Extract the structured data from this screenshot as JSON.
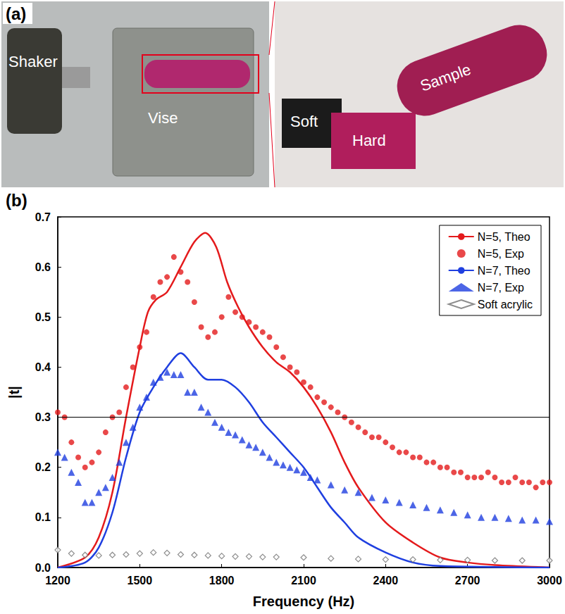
{
  "photo": {
    "letter": "(a)",
    "left_labels": [
      "Shaker",
      "Vise"
    ],
    "right_labels": [
      "Soft",
      "Hard",
      "Sample"
    ]
  },
  "chart_data": {
    "type": "line",
    "panel_letter": "(b)",
    "x_label": "Frequency (Hz)",
    "y_label": "|t|",
    "xlim": [
      1200,
      3000
    ],
    "xticks": [
      1200,
      1500,
      1800,
      2100,
      2400,
      2700,
      3000
    ],
    "ylim": [
      0,
      0.7
    ],
    "yticks": [
      {
        "value": 0,
        "label": "0.0"
      },
      0.1,
      0.2,
      0.3,
      0.4,
      0.5,
      0.6,
      0.7
    ],
    "reference_line": 0.3,
    "grid": false,
    "legend": "top-right",
    "series": [
      {
        "name": "N=5, Theo",
        "type": "line",
        "color": "#e41a1c",
        "line_style": "solid",
        "x": [
          1200,
          1300,
          1350,
          1400,
          1450,
          1500,
          1530,
          1560,
          1600,
          1650,
          1700,
          1740,
          1780,
          1820,
          1860,
          1900,
          1950,
          2000,
          2050,
          2100,
          2150,
          2200,
          2250,
          2300,
          2400,
          2500,
          2600,
          2700,
          2800,
          3000
        ],
        "values": [
          0.0,
          0.02,
          0.06,
          0.15,
          0.3,
          0.44,
          0.51,
          0.535,
          0.55,
          0.6,
          0.65,
          0.668,
          0.64,
          0.57,
          0.52,
          0.48,
          0.44,
          0.41,
          0.39,
          0.36,
          0.32,
          0.27,
          0.21,
          0.16,
          0.09,
          0.05,
          0.02,
          0.01,
          0.005,
          0.0
        ]
      },
      {
        "name": "N=5, Exp",
        "type": "scatter",
        "color": "#e41a1c",
        "marker": "circle",
        "x": [
          1200,
          1225,
          1250,
          1275,
          1300,
          1325,
          1350,
          1375,
          1400,
          1425,
          1450,
          1475,
          1500,
          1525,
          1550,
          1575,
          1600,
          1625,
          1650,
          1675,
          1700,
          1725,
          1750,
          1775,
          1800,
          1825,
          1850,
          1875,
          1900,
          1925,
          1950,
          1975,
          2000,
          2025,
          2050,
          2075,
          2100,
          2125,
          2150,
          2175,
          2200,
          2225,
          2250,
          2275,
          2300,
          2325,
          2350,
          2375,
          2400,
          2425,
          2450,
          2475,
          2500,
          2525,
          2550,
          2575,
          2600,
          2625,
          2650,
          2675,
          2700,
          2725,
          2750,
          2775,
          2800,
          2825,
          2850,
          2875,
          2900,
          2925,
          2950,
          2975,
          3000
        ],
        "values": [
          0.31,
          0.3,
          0.25,
          0.22,
          0.2,
          0.21,
          0.23,
          0.27,
          0.3,
          0.31,
          0.36,
          0.4,
          0.44,
          0.47,
          0.54,
          0.57,
          0.58,
          0.62,
          0.59,
          0.57,
          0.53,
          0.48,
          0.46,
          0.47,
          0.5,
          0.54,
          0.51,
          0.5,
          0.49,
          0.48,
          0.47,
          0.46,
          0.44,
          0.42,
          0.4,
          0.39,
          0.37,
          0.36,
          0.34,
          0.33,
          0.32,
          0.31,
          0.3,
          0.29,
          0.28,
          0.27,
          0.26,
          0.26,
          0.25,
          0.24,
          0.23,
          0.23,
          0.22,
          0.22,
          0.21,
          0.21,
          0.2,
          0.2,
          0.19,
          0.19,
          0.18,
          0.18,
          0.18,
          0.19,
          0.18,
          0.17,
          0.17,
          0.18,
          0.17,
          0.17,
          0.16,
          0.17,
          0.17
        ]
      },
      {
        "name": "N=7, Theo",
        "type": "line",
        "color": "#1f3fe0",
        "line_style": "solid",
        "x": [
          1200,
          1300,
          1350,
          1400,
          1450,
          1500,
          1550,
          1600,
          1650,
          1700,
          1750,
          1800,
          1850,
          1900,
          1950,
          2000,
          2050,
          2100,
          2150,
          2200,
          2250,
          2300,
          2400,
          2500,
          2600,
          3000
        ],
        "values": [
          0.0,
          0.01,
          0.04,
          0.11,
          0.22,
          0.31,
          0.36,
          0.4,
          0.428,
          0.4,
          0.375,
          0.375,
          0.36,
          0.33,
          0.29,
          0.26,
          0.23,
          0.2,
          0.16,
          0.12,
          0.09,
          0.06,
          0.03,
          0.01,
          0.003,
          0.0
        ]
      },
      {
        "name": "N=7, Exp",
        "type": "scatter",
        "color": "#1f3fe0",
        "marker": "triangle",
        "x": [
          1200,
          1225,
          1250,
          1275,
          1300,
          1325,
          1350,
          1375,
          1400,
          1425,
          1450,
          1475,
          1500,
          1525,
          1550,
          1575,
          1600,
          1625,
          1650,
          1675,
          1700,
          1725,
          1750,
          1775,
          1800,
          1825,
          1850,
          1875,
          1900,
          1925,
          1950,
          1975,
          2000,
          2025,
          2050,
          2075,
          2100,
          2125,
          2150,
          2200,
          2250,
          2300,
          2350,
          2400,
          2450,
          2500,
          2550,
          2600,
          2650,
          2700,
          2750,
          2800,
          2850,
          2900,
          2950,
          3000
        ],
        "values": [
          0.23,
          0.22,
          0.19,
          0.17,
          0.13,
          0.13,
          0.15,
          0.16,
          0.18,
          0.21,
          0.25,
          0.28,
          0.32,
          0.34,
          0.37,
          0.38,
          0.39,
          0.385,
          0.385,
          0.35,
          0.35,
          0.32,
          0.31,
          0.29,
          0.28,
          0.27,
          0.265,
          0.255,
          0.245,
          0.24,
          0.23,
          0.22,
          0.21,
          0.205,
          0.2,
          0.195,
          0.19,
          0.18,
          0.175,
          0.165,
          0.155,
          0.15,
          0.14,
          0.135,
          0.13,
          0.125,
          0.12,
          0.115,
          0.11,
          0.105,
          0.1,
          0.1,
          0.098,
          0.095,
          0.095,
          0.092
        ]
      },
      {
        "name": "Soft acrylic",
        "type": "scatter",
        "color": "#707070",
        "marker": "diamond-open",
        "x": [
          1200,
          1250,
          1300,
          1350,
          1400,
          1450,
          1500,
          1550,
          1600,
          1650,
          1700,
          1750,
          1800,
          1850,
          1900,
          1950,
          2000,
          2100,
          2200,
          2300,
          2400,
          2500,
          2600,
          2700,
          2800,
          2900,
          3000
        ],
        "values": [
          0.035,
          0.028,
          0.025,
          0.024,
          0.025,
          0.026,
          0.028,
          0.03,
          0.029,
          0.026,
          0.025,
          0.024,
          0.023,
          0.022,
          0.022,
          0.021,
          0.021,
          0.02,
          0.018,
          0.017,
          0.016,
          0.016,
          0.015,
          0.015,
          0.014,
          0.014,
          0.014
        ]
      }
    ]
  }
}
